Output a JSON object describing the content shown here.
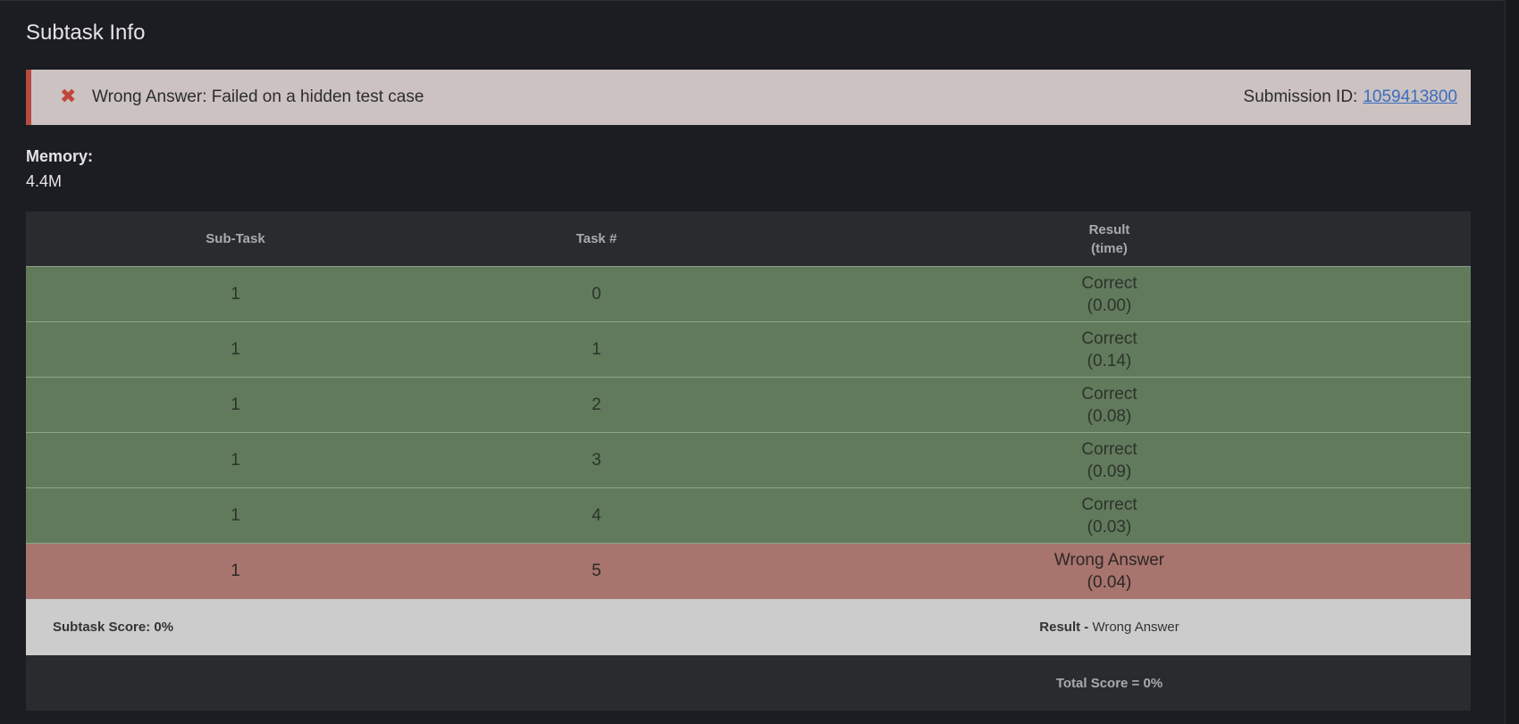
{
  "title": "Subtask Info",
  "alert": {
    "icon": "x-icon",
    "message": "Wrong Answer: Failed on a hidden test case",
    "submission_label": "Submission ID:",
    "submission_id": "1059413800",
    "accent_color": "#b84b3e"
  },
  "memory": {
    "label": "Memory:",
    "value": "4.4M"
  },
  "table": {
    "headers": {
      "subtask": "Sub-Task",
      "task": "Task #",
      "result": "Result",
      "time": "(time)"
    },
    "rows": [
      {
        "subtask": "1",
        "task": "0",
        "result": "Correct",
        "time": "(0.00)",
        "status": "correct"
      },
      {
        "subtask": "1",
        "task": "1",
        "result": "Correct",
        "time": "(0.14)",
        "status": "correct"
      },
      {
        "subtask": "1",
        "task": "2",
        "result": "Correct",
        "time": "(0.08)",
        "status": "correct"
      },
      {
        "subtask": "1",
        "task": "3",
        "result": "Correct",
        "time": "(0.09)",
        "status": "correct"
      },
      {
        "subtask": "1",
        "task": "4",
        "result": "Correct",
        "time": "(0.03)",
        "status": "correct"
      },
      {
        "subtask": "1",
        "task": "5",
        "result": "Wrong Answer",
        "time": "(0.04)",
        "status": "wrong"
      }
    ],
    "status_colors": {
      "correct": "#617a5b",
      "wrong": "#a7746e"
    }
  },
  "summary": {
    "subtask_score": "Subtask Score: 0%",
    "result_label": "Result -",
    "result_value": "Wrong Answer"
  },
  "total": "Total Score = 0%"
}
